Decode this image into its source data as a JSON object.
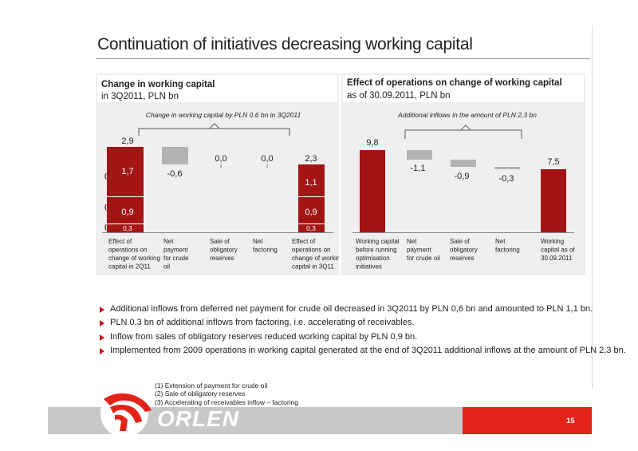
{
  "title": "Continuation of initiatives decreasing working capital",
  "left_panel": {
    "title": "Change in working capital",
    "subtitle": "in 3Q2011, PLN bn",
    "annotation": "Change in working capital by PLN 0,6 bn in 3Q2011",
    "row_markers": [
      "( 1 )",
      "( 2 )",
      "( 3 )"
    ],
    "bars": [
      {
        "label": [
          "Effect of",
          "operations on",
          "change of working",
          "capital in 2Q11"
        ],
        "total": "2,9",
        "segments": [
          "1,7",
          "0,9",
          "0,3"
        ]
      },
      {
        "label": [
          "Net",
          "payment",
          "for crude",
          "oil"
        ],
        "value": "-0,6"
      },
      {
        "label": [
          "Sale of",
          "obligatory",
          "reserves"
        ],
        "value": "0,0"
      },
      {
        "label": [
          "Net",
          "factoring"
        ],
        "value": "0,0"
      },
      {
        "label": [
          "Effect of",
          "operations on",
          "change of working",
          "capital in 3Q11"
        ],
        "total": "2,3",
        "segments": [
          "1,1",
          "0,9",
          "0,3"
        ]
      }
    ]
  },
  "right_panel": {
    "title": "Effect of operations on change of working capital",
    "subtitle": "as of 30.09.2011, PLN bn",
    "annotation": "Additional inflows in the amount of PLN 2,3 bn",
    "bars": [
      {
        "label": [
          "Working capital",
          "before running",
          "optimisation",
          "initiatives"
        ],
        "value": "9,8"
      },
      {
        "label": [
          "Net",
          "payment",
          "for crude oil"
        ],
        "value": "-1,1"
      },
      {
        "label": [
          "Sale of",
          "obligatory",
          "reserves"
        ],
        "value": "-0,9"
      },
      {
        "label": [
          "Net",
          "factoring"
        ],
        "value": "-0,3"
      },
      {
        "label": [
          "Working",
          "capital as of",
          "30.09.2011"
        ],
        "value": "7,5"
      }
    ]
  },
  "bullets": [
    "Additional inflows from deferred net payment for crude oil decreased in 3Q2011 by PLN 0,6 bn and amounted to PLN 1,1 bn.",
    "PLN 0,3 bn of additional inflows from factoring, i.e. accelerating of receivables.",
    "Inflow from sales of obligatory reserves reduced working capital by PLN 0,9 bn.",
    "Implemented from 2009 operations in working capital generated at the end of 3Q2011 additional inflows at the amount of PLN 2,3 bn."
  ],
  "footnotes": [
    "(1) Extension of payment for crude oil",
    "(2) Sale of obligatory reserves",
    "(3) Accelerating of receivables inflow – factoring"
  ],
  "footer": {
    "brand": "ORLEN",
    "page_number": "15"
  },
  "colors": {
    "dark_red": "#a31515",
    "grey_bar": "#b3b3b3",
    "brand_red": "#e2231a",
    "panel_bg": "#efefef"
  }
}
